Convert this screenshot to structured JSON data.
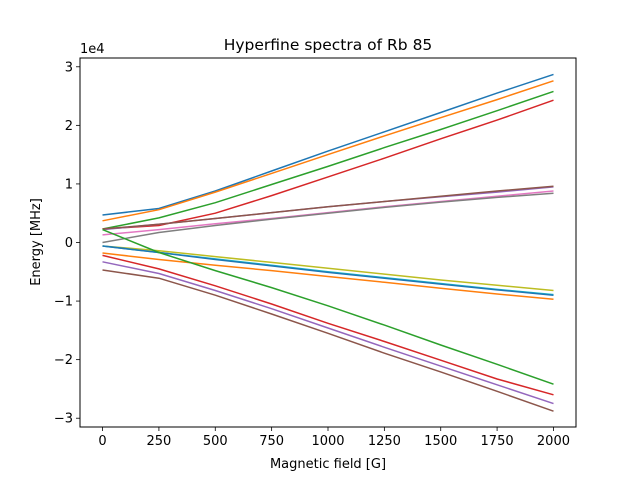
{
  "chart_data": {
    "type": "line",
    "title": "Hyperfine spectra of Rb 85",
    "xlabel": "Magnetic field [G]",
    "ylabel": "Energy [MHz]",
    "offset_label": "1e4",
    "xlim": [
      -100,
      2100
    ],
    "ylim": [
      -31500,
      31500
    ],
    "x_ticks": [
      0,
      250,
      500,
      750,
      1000,
      1250,
      1500,
      1750,
      2000
    ],
    "y_ticks": [
      -30000,
      -20000,
      -10000,
      0,
      10000,
      20000,
      30000
    ],
    "y_tick_labels": [
      "−3",
      "−2",
      "−1",
      "0",
      "1",
      "2",
      "3"
    ],
    "grid": false,
    "x": [
      0,
      250,
      500,
      750,
      1000,
      1250,
      1500,
      1750,
      2000
    ],
    "series": [
      {
        "color": "#1f77b4",
        "values": [
          4700,
          5800,
          8800,
          12200,
          15600,
          18900,
          22200,
          25500,
          28700
        ]
      },
      {
        "color": "#ff7f0e",
        "values": [
          3700,
          5600,
          8600,
          11800,
          15000,
          18200,
          21300,
          24400,
          27600
        ]
      },
      {
        "color": "#2ca02c",
        "values": [
          2300,
          4200,
          6800,
          9900,
          13000,
          16200,
          19300,
          22500,
          25800
        ]
      },
      {
        "color": "#d62728",
        "values": [
          2300,
          2900,
          5000,
          8000,
          11200,
          14400,
          17700,
          20900,
          24300
        ]
      },
      {
        "color": "#9467bd",
        "values": [
          2200,
          3100,
          4100,
          5100,
          6100,
          7000,
          7800,
          8600,
          9500
        ]
      },
      {
        "color": "#8c564b",
        "values": [
          2300,
          3100,
          4100,
          5100,
          6100,
          7000,
          7900,
          8800,
          9600
        ]
      },
      {
        "color": "#e377c2",
        "values": [
          1300,
          2200,
          3200,
          4100,
          5100,
          6100,
          7000,
          7900,
          8800
        ]
      },
      {
        "color": "#7f7f7f",
        "values": [
          0,
          1700,
          2900,
          4000,
          5000,
          6000,
          6900,
          7700,
          8400
        ]
      },
      {
        "color": "#bcbd22",
        "values": [
          -600,
          -1400,
          -2400,
          -3400,
          -4400,
          -5400,
          -6400,
          -7300,
          -8200
        ]
      },
      {
        "color": "#17becf",
        "values": [
          -600,
          -1700,
          -2800,
          -3900,
          -5000,
          -6000,
          -7000,
          -8000,
          -8900
        ]
      },
      {
        "color": "#1f77b4",
        "values": [
          -600,
          -1700,
          -2900,
          -4000,
          -5100,
          -6100,
          -7100,
          -8100,
          -9000
        ]
      },
      {
        "color": "#ff7f0e",
        "values": [
          -1800,
          -2900,
          -3900,
          -4800,
          -5800,
          -6800,
          -7800,
          -8800,
          -9700
        ]
      },
      {
        "color": "#2ca02c",
        "values": [
          2200,
          -1700,
          -4800,
          -7700,
          -10800,
          -14100,
          -17500,
          -20800,
          -24200
        ]
      },
      {
        "color": "#d62728",
        "values": [
          -2200,
          -4500,
          -7400,
          -10500,
          -13800,
          -16900,
          -20100,
          -23300,
          -26000
        ]
      },
      {
        "color": "#9467bd",
        "values": [
          -3300,
          -5300,
          -8200,
          -11300,
          -14600,
          -17900,
          -21100,
          -24300,
          -27500
        ]
      },
      {
        "color": "#8c564b",
        "values": [
          -4700,
          -6100,
          -9000,
          -12200,
          -15500,
          -18900,
          -22100,
          -25400,
          -28800
        ]
      }
    ]
  }
}
